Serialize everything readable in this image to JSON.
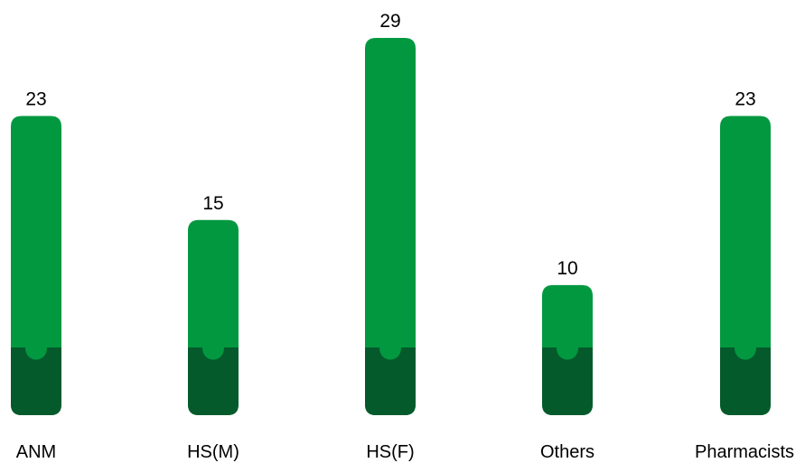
{
  "chart_data": {
    "type": "bar",
    "categories": [
      "ANM",
      "HS(M)",
      "HS(F)",
      "Others",
      "Pharmacists"
    ],
    "values": [
      23,
      15,
      29,
      10,
      23
    ],
    "ylim": [
      0,
      29
    ],
    "grid": false,
    "legend": "none",
    "colors": {
      "bar": "#029840",
      "bar_base": "#045a2b"
    }
  }
}
